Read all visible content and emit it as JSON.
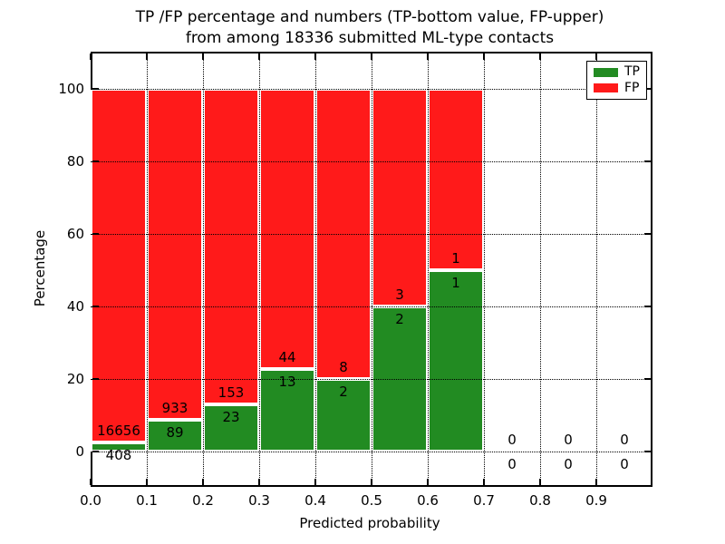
{
  "title": {
    "line1": "TP /FP percentage and numbers (TP-bottom value, FP-upper)",
    "line2": "from among 18336 submitted ML-type contacts"
  },
  "y_axis": {
    "label": "Percentage",
    "ticks": [
      0,
      20,
      40,
      60,
      80,
      100
    ]
  },
  "x_axis": {
    "label": "Predicted probability",
    "ticks": [
      "0.0",
      "0.1",
      "0.2",
      "0.3",
      "0.4",
      "0.5",
      "0.6",
      "0.7",
      "0.8",
      "0.9"
    ]
  },
  "legend": {
    "items": [
      {
        "label": "TP",
        "color": "#228b22"
      },
      {
        "label": "FP",
        "color": "#ff1a1a"
      }
    ]
  },
  "colors": {
    "tp": "#228b22",
    "fp": "#ff1a1a",
    "grid": "#000000",
    "text": "#000000",
    "background": "#ffffff"
  },
  "chart_data": {
    "type": "bar",
    "stacked": true,
    "title": "TP /FP percentage and numbers (TP-bottom value, FP-upper) from among 18336 submitted ML-type contacts",
    "xlabel": "Predicted probability",
    "ylabel": "Percentage",
    "xlim": [
      0.0,
      1.0
    ],
    "ylim": [
      -10,
      110
    ],
    "grid": true,
    "grid_style": "dotted",
    "legend_position": "upper right",
    "total_contacts": 18336,
    "bin_width": 0.1,
    "series_note": "Each bin stacks TP (green, bottom) and FP (red, top) as percentage of bin total; labels show raw counts (FP above boundary, TP below)",
    "bins": [
      {
        "range": [
          0.0,
          0.1
        ],
        "tp": 408,
        "fp": 16656,
        "tp_pct": 2.4,
        "fp_pct": 97.6
      },
      {
        "range": [
          0.1,
          0.2
        ],
        "tp": 89,
        "fp": 933,
        "tp_pct": 8.7,
        "fp_pct": 91.3
      },
      {
        "range": [
          0.2,
          0.3
        ],
        "tp": 23,
        "fp": 153,
        "tp_pct": 13.1,
        "fp_pct": 86.9
      },
      {
        "range": [
          0.3,
          0.4
        ],
        "tp": 13,
        "fp": 44,
        "tp_pct": 22.8,
        "fp_pct": 77.2
      },
      {
        "range": [
          0.4,
          0.5
        ],
        "tp": 2,
        "fp": 8,
        "tp_pct": 20.0,
        "fp_pct": 80.0
      },
      {
        "range": [
          0.5,
          0.6
        ],
        "tp": 2,
        "fp": 3,
        "tp_pct": 40.0,
        "fp_pct": 60.0
      },
      {
        "range": [
          0.6,
          0.7
        ],
        "tp": 1,
        "fp": 1,
        "tp_pct": 50.0,
        "fp_pct": 50.0
      },
      {
        "range": [
          0.7,
          0.8
        ],
        "tp": 0,
        "fp": 0,
        "tp_pct": 0,
        "fp_pct": 0
      },
      {
        "range": [
          0.8,
          0.9
        ],
        "tp": 0,
        "fp": 0,
        "tp_pct": 0,
        "fp_pct": 0
      },
      {
        "range": [
          0.9,
          1.0
        ],
        "tp": 0,
        "fp": 0,
        "tp_pct": 0,
        "fp_pct": 0
      }
    ]
  }
}
